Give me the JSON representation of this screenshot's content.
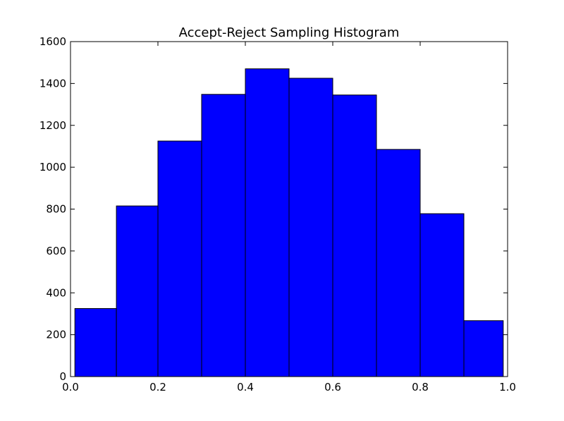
{
  "chart_data": {
    "type": "bar",
    "title": "Accept-Reject Sampling Histogram",
    "xlabel": "",
    "ylabel": "",
    "xlim": [
      0.0,
      1.0
    ],
    "ylim": [
      0,
      1600
    ],
    "x_ticks": [
      "0.0",
      "0.2",
      "0.4",
      "0.6",
      "0.8",
      "1.0"
    ],
    "y_ticks": [
      "0",
      "200",
      "400",
      "600",
      "800",
      "1000",
      "1200",
      "1400",
      "1600"
    ],
    "bins": [
      {
        "start": 0.01,
        "end": 0.105,
        "value": 325
      },
      {
        "start": 0.105,
        "end": 0.2,
        "value": 815
      },
      {
        "start": 0.2,
        "end": 0.3,
        "value": 1125
      },
      {
        "start": 0.3,
        "end": 0.4,
        "value": 1348
      },
      {
        "start": 0.4,
        "end": 0.5,
        "value": 1470
      },
      {
        "start": 0.5,
        "end": 0.6,
        "value": 1425
      },
      {
        "start": 0.6,
        "end": 0.7,
        "value": 1345
      },
      {
        "start": 0.7,
        "end": 0.8,
        "value": 1085
      },
      {
        "start": 0.8,
        "end": 0.9,
        "value": 778
      },
      {
        "start": 0.9,
        "end": 0.99,
        "value": 267
      }
    ],
    "bar_color": "#0000ff",
    "edge_color": "#000000",
    "grid": false,
    "legend": "none"
  }
}
